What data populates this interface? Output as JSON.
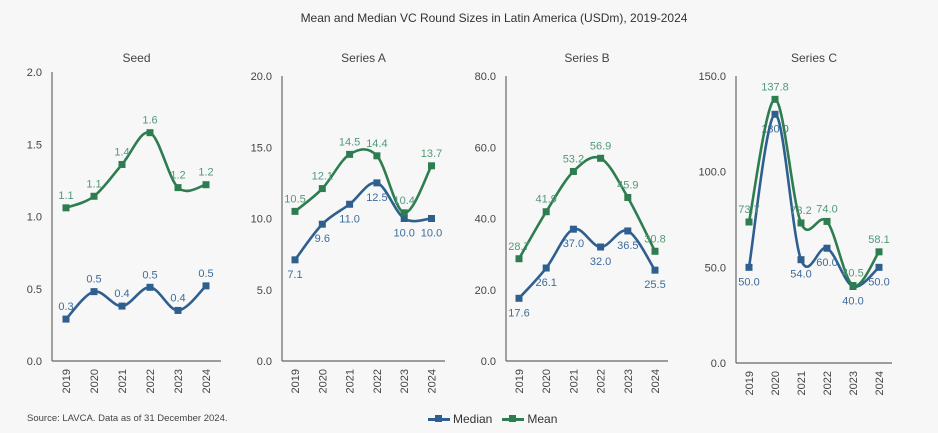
{
  "chart_data": {
    "type": "line",
    "title": "Mean and Median VC Round Sizes in Latin America (USDm), 2019-2024",
    "source": "Source: LAVCA. Data as of 31 December 2024.",
    "categories": [
      "2019",
      "2020",
      "2021",
      "2022",
      "2023",
      "2024"
    ],
    "legend": {
      "position": "bottom",
      "entries": [
        "Median",
        "Mean"
      ]
    },
    "colors": {
      "Median": "#2f5f8f",
      "Mean": "#2e7d50",
      "Median_label": "#3d6c9c",
      "Mean_label": "#4f9a78",
      "axis": "#666666"
    },
    "panels": [
      {
        "title": "Seed",
        "ylim": [
          0,
          2.0
        ],
        "yticks": [
          "0.0",
          "0.5",
          "1.0",
          "1.5",
          "2.0"
        ],
        "series": [
          {
            "name": "Median",
            "values": [
              0.29,
              0.48,
              0.38,
              0.51,
              0.35,
              0.52
            ],
            "labels": [
              "0.3",
              "0.5",
              "0.4",
              "0.5",
              "0.4",
              "0.5"
            ],
            "label_position": "above"
          },
          {
            "name": "Mean",
            "values": [
              1.06,
              1.14,
              1.36,
              1.58,
              1.2,
              1.22
            ],
            "labels": [
              "1.1",
              "1.1",
              "1.4",
              "1.6",
              "1.2",
              "1.2"
            ],
            "label_position": "above"
          }
        ]
      },
      {
        "title": "Series A",
        "ylim": [
          0,
          20.0
        ],
        "yticks": [
          "0.0",
          "5.0",
          "10.0",
          "15.0",
          "20.0"
        ],
        "series": [
          {
            "name": "Median",
            "values": [
              7.1,
              9.6,
              11.0,
              12.5,
              10.0,
              10.0
            ],
            "labels": [
              "7.1",
              "9.6",
              "11.0",
              "12.5",
              "10.0",
              "10.0"
            ],
            "label_position": "below"
          },
          {
            "name": "Mean",
            "values": [
              10.5,
              12.1,
              14.5,
              14.4,
              10.4,
              13.7
            ],
            "labels": [
              "10.5",
              "12.1",
              "14.5",
              "14.4",
              "10.4",
              "13.7"
            ],
            "label_position": "above"
          }
        ]
      },
      {
        "title": "Series B",
        "ylim": [
          0,
          80.0
        ],
        "yticks": [
          "0.0",
          "20.0",
          "40.0",
          "60.0",
          "80.0"
        ],
        "series": [
          {
            "name": "Median",
            "values": [
              17.6,
              26.1,
              37.0,
              32.0,
              36.5,
              25.5
            ],
            "labels": [
              "17.6",
              "26.1",
              "37.0",
              "32.0",
              "36.5",
              "25.5"
            ],
            "label_position": "below"
          },
          {
            "name": "Mean",
            "values": [
              28.7,
              41.9,
              53.2,
              56.9,
              45.9,
              30.8
            ],
            "labels": [
              "28.7",
              "41.9",
              "53.2",
              "56.9",
              "45.9",
              "30.8"
            ],
            "label_position": "above"
          }
        ]
      },
      {
        "title": "Series C",
        "ylim": [
          0,
          150.0
        ],
        "yticks": [
          "0.0",
          "50.0",
          "100.0",
          "150.0"
        ],
        "series": [
          {
            "name": "Median",
            "values": [
              50.0,
              130.0,
              54.0,
              60.0,
              40.0,
              50.0
            ],
            "labels": [
              "50.0",
              "130.0",
              "54.0",
              "60.0",
              "40.0",
              "50.0"
            ],
            "label_position": "below"
          },
          {
            "name": "Mean",
            "values": [
              73.7,
              137.8,
              73.2,
              74.0,
              40.5,
              58.1
            ],
            "labels": [
              "73.7",
              "137.8",
              "73.2",
              "74.0",
              "40.5",
              "58.1"
            ],
            "label_position": "above"
          }
        ]
      }
    ]
  }
}
